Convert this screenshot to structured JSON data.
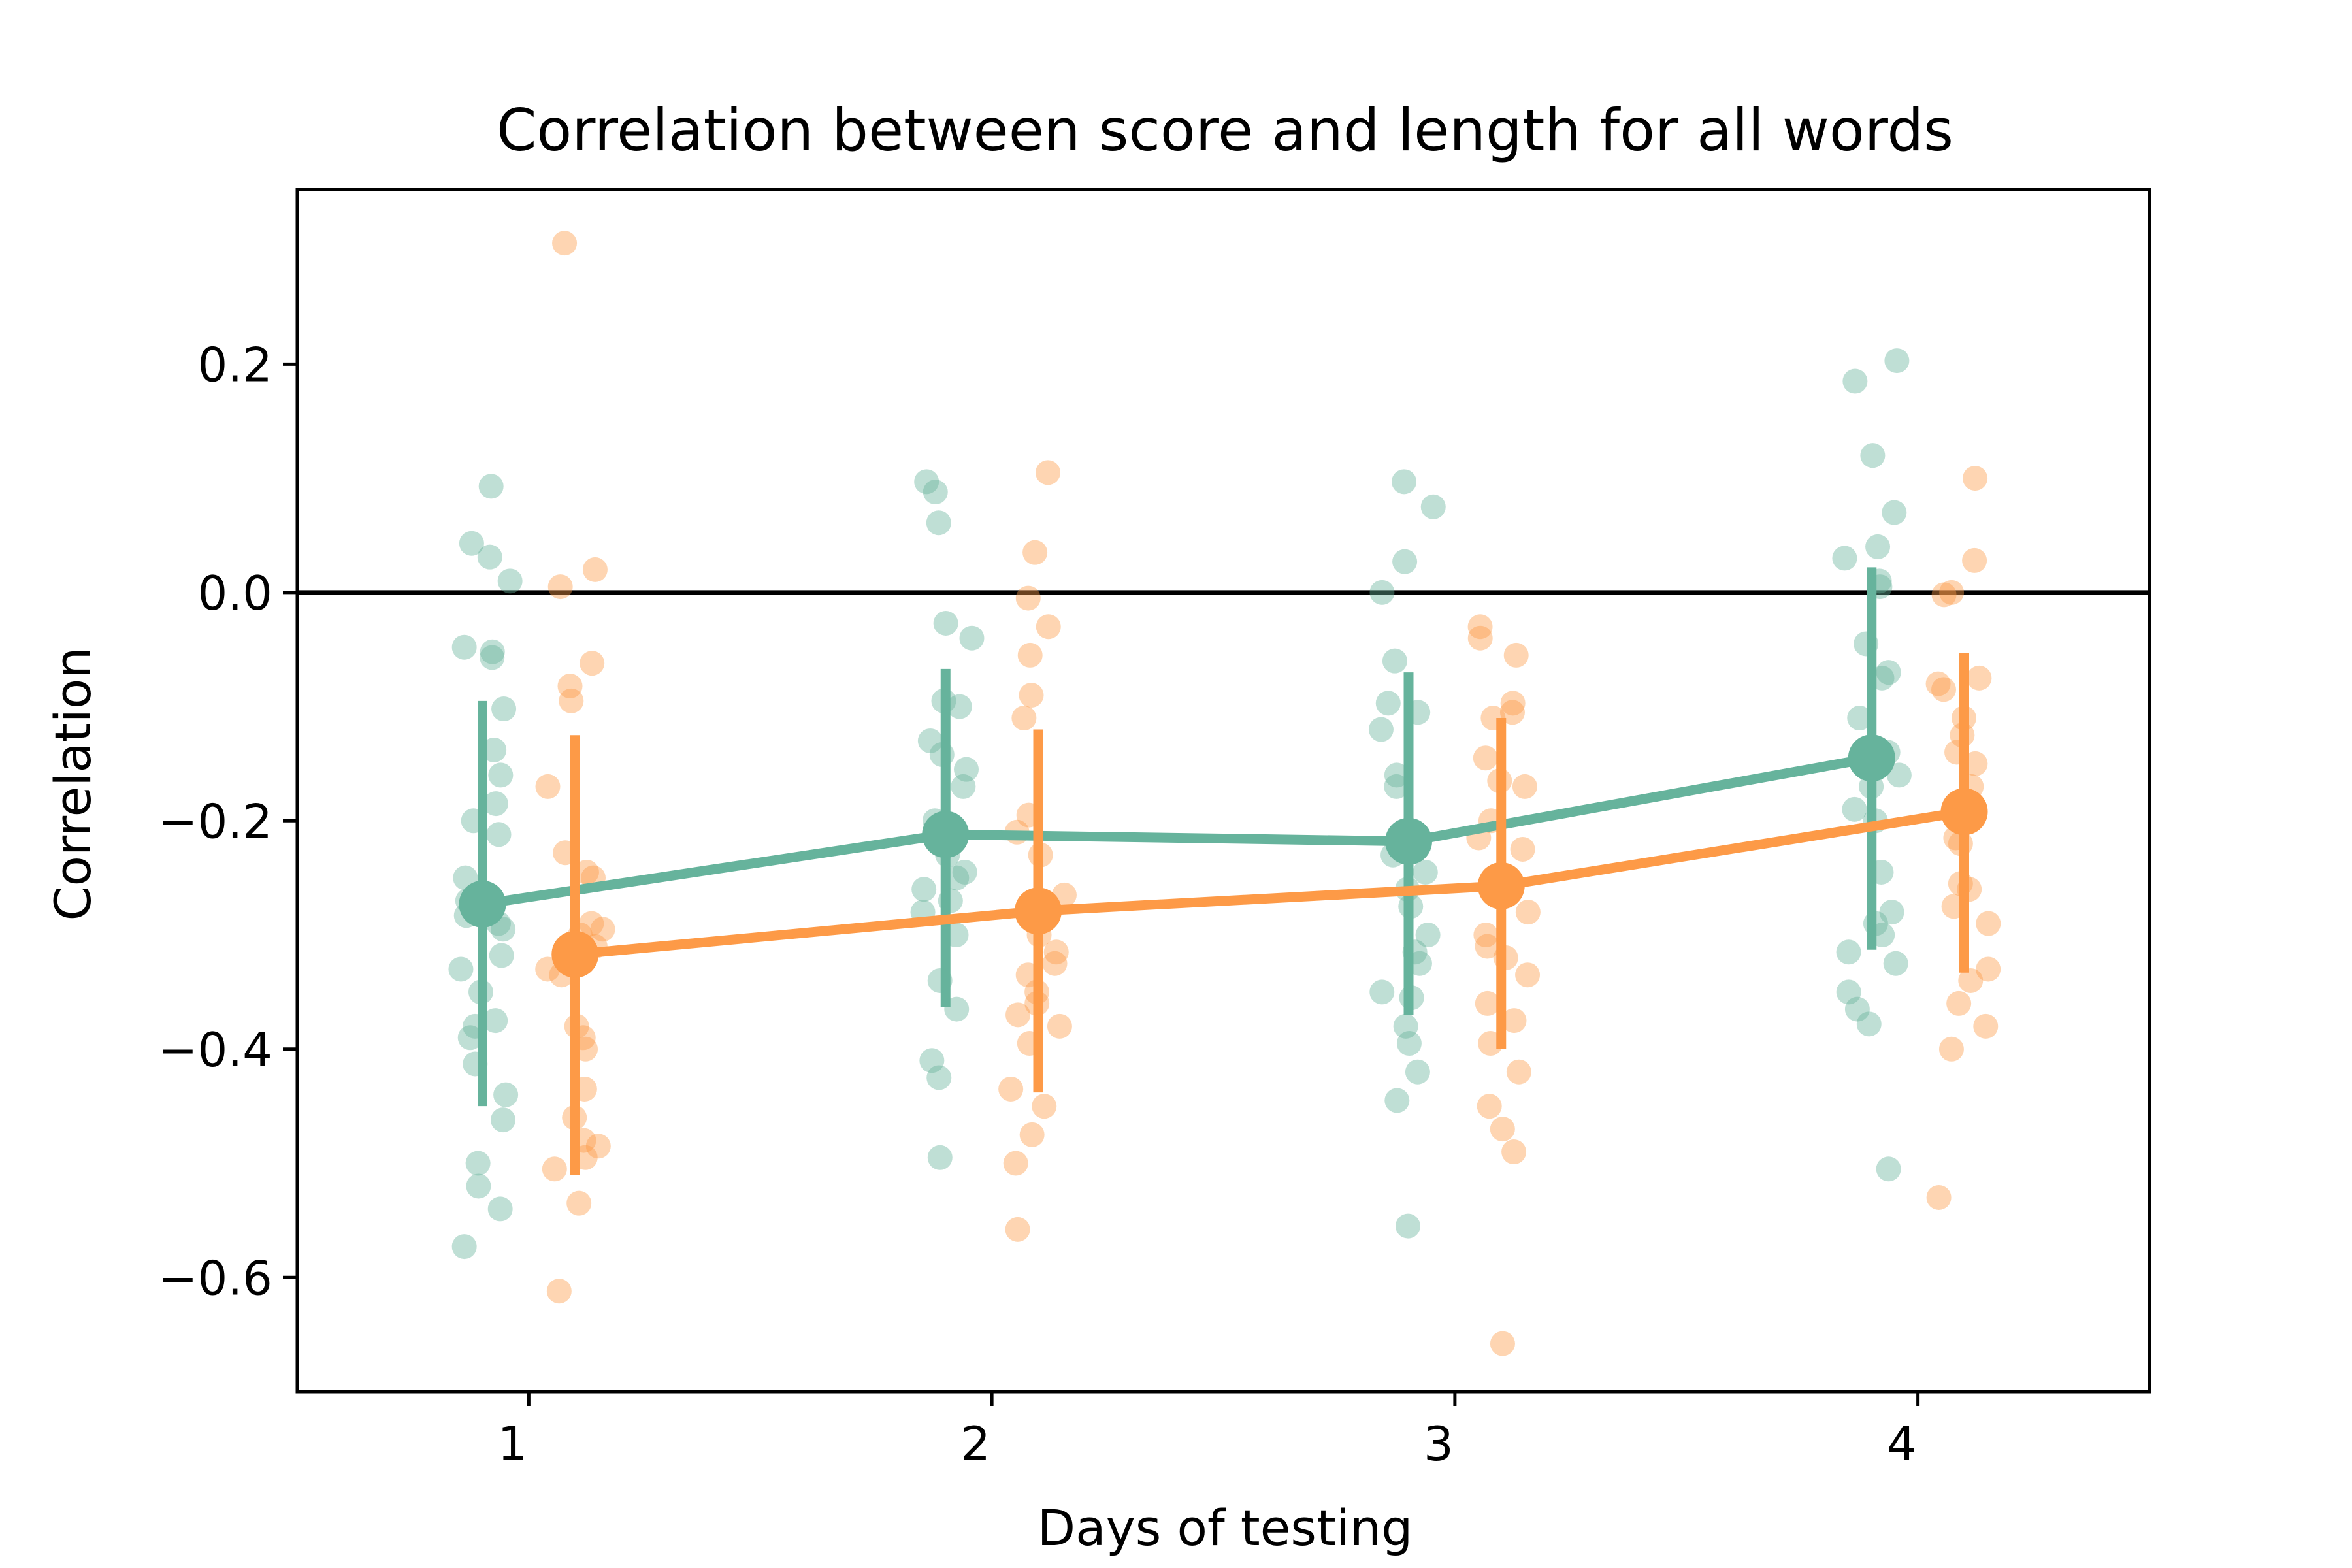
{
  "chart_data": {
    "type": "scatter",
    "title": "Correlation between score and length for all words",
    "xlabel": "Days of testing",
    "ylabel": "Correlation",
    "categories": [
      "1",
      "2",
      "3",
      "4"
    ],
    "x_range": [
      0.5,
      4.5
    ],
    "ylim": [
      -0.7,
      0.353
    ],
    "yticks": [
      0.2,
      0.0,
      -0.2,
      -0.4,
      -0.6
    ],
    "ytick_labels": [
      "0.2",
      "0.0",
      "−0.2",
      "−0.4",
      "−0.6"
    ],
    "reference_line_y": 0.0,
    "legend": "none",
    "grid": false,
    "series": [
      {
        "color": "#66b39c",
        "offset": -0.1,
        "means": [
          -0.273,
          -0.212,
          -0.218,
          -0.145
        ],
        "ci_low": [
          -0.45,
          -0.363,
          -0.37,
          -0.313
        ],
        "ci_high": [
          -0.095,
          -0.067,
          -0.07,
          0.022
        ],
        "points": [
          [
            0.093,
            0.043,
            0.031,
            0.01,
            -0.052,
            -0.057,
            -0.048,
            -0.102,
            -0.138,
            -0.16,
            -0.185,
            -0.2,
            -0.212,
            -0.25,
            -0.265,
            -0.27,
            -0.283,
            -0.29,
            -0.295,
            -0.318,
            -0.33,
            -0.35,
            -0.375,
            -0.38,
            -0.39,
            -0.413,
            -0.44,
            -0.462,
            -0.5,
            -0.52,
            -0.54,
            -0.573
          ],
          [
            0.097,
            0.088,
            0.061,
            -0.027,
            -0.04,
            -0.095,
            -0.1,
            -0.13,
            -0.142,
            -0.155,
            -0.17,
            -0.2,
            -0.23,
            -0.245,
            -0.25,
            -0.26,
            -0.27,
            -0.28,
            -0.3,
            -0.34,
            -0.365,
            -0.41,
            -0.425,
            -0.495
          ],
          [
            0.097,
            0.075,
            0.027,
            0.0,
            -0.06,
            -0.097,
            -0.105,
            -0.12,
            -0.16,
            -0.17,
            -0.21,
            -0.23,
            -0.245,
            -0.26,
            -0.275,
            -0.3,
            -0.315,
            -0.325,
            -0.35,
            -0.355,
            -0.38,
            -0.395,
            -0.42,
            -0.445,
            -0.555
          ],
          [
            0.203,
            0.185,
            0.12,
            0.07,
            0.04,
            0.03,
            0.01,
            0.005,
            -0.045,
            -0.07,
            -0.075,
            -0.11,
            -0.14,
            -0.16,
            -0.17,
            -0.19,
            -0.2,
            -0.245,
            -0.28,
            -0.29,
            -0.3,
            -0.315,
            -0.325,
            -0.35,
            -0.365,
            -0.378,
            -0.505
          ]
        ]
      },
      {
        "color": "#fd9a47",
        "offset": 0.1,
        "means": [
          -0.317,
          -0.279,
          -0.257,
          -0.192
        ],
        "ci_low": [
          -0.51,
          -0.438,
          -0.4,
          -0.333
        ],
        "ci_high": [
          -0.125,
          -0.12,
          -0.11,
          -0.053
        ],
        "points": [
          [
            0.306,
            0.02,
            0.005,
            -0.062,
            -0.082,
            -0.095,
            -0.17,
            -0.228,
            -0.245,
            -0.25,
            -0.29,
            -0.295,
            -0.3,
            -0.31,
            -0.32,
            -0.33,
            -0.335,
            -0.38,
            -0.39,
            -0.4,
            -0.435,
            -0.46,
            -0.48,
            -0.485,
            -0.495,
            -0.505,
            -0.535,
            -0.612
          ],
          [
            0.105,
            0.035,
            -0.005,
            -0.03,
            -0.055,
            -0.09,
            -0.11,
            -0.195,
            -0.21,
            -0.23,
            -0.265,
            -0.28,
            -0.3,
            -0.315,
            -0.325,
            -0.335,
            -0.35,
            -0.36,
            -0.37,
            -0.38,
            -0.395,
            -0.435,
            -0.45,
            -0.475,
            -0.5,
            -0.558
          ],
          [
            -0.03,
            -0.04,
            -0.055,
            -0.097,
            -0.105,
            -0.11,
            -0.145,
            -0.165,
            -0.17,
            -0.2,
            -0.215,
            -0.225,
            -0.25,
            -0.28,
            -0.3,
            -0.31,
            -0.32,
            -0.335,
            -0.36,
            -0.375,
            -0.395,
            -0.42,
            -0.45,
            -0.47,
            -0.49,
            -0.658
          ],
          [
            0.1,
            0.028,
            0.0,
            -0.002,
            -0.075,
            -0.08,
            -0.085,
            -0.11,
            -0.125,
            -0.14,
            -0.15,
            -0.17,
            -0.19,
            -0.215,
            -0.22,
            -0.255,
            -0.26,
            -0.275,
            -0.29,
            -0.33,
            -0.34,
            -0.36,
            -0.38,
            -0.4,
            -0.53
          ]
        ]
      }
    ]
  }
}
